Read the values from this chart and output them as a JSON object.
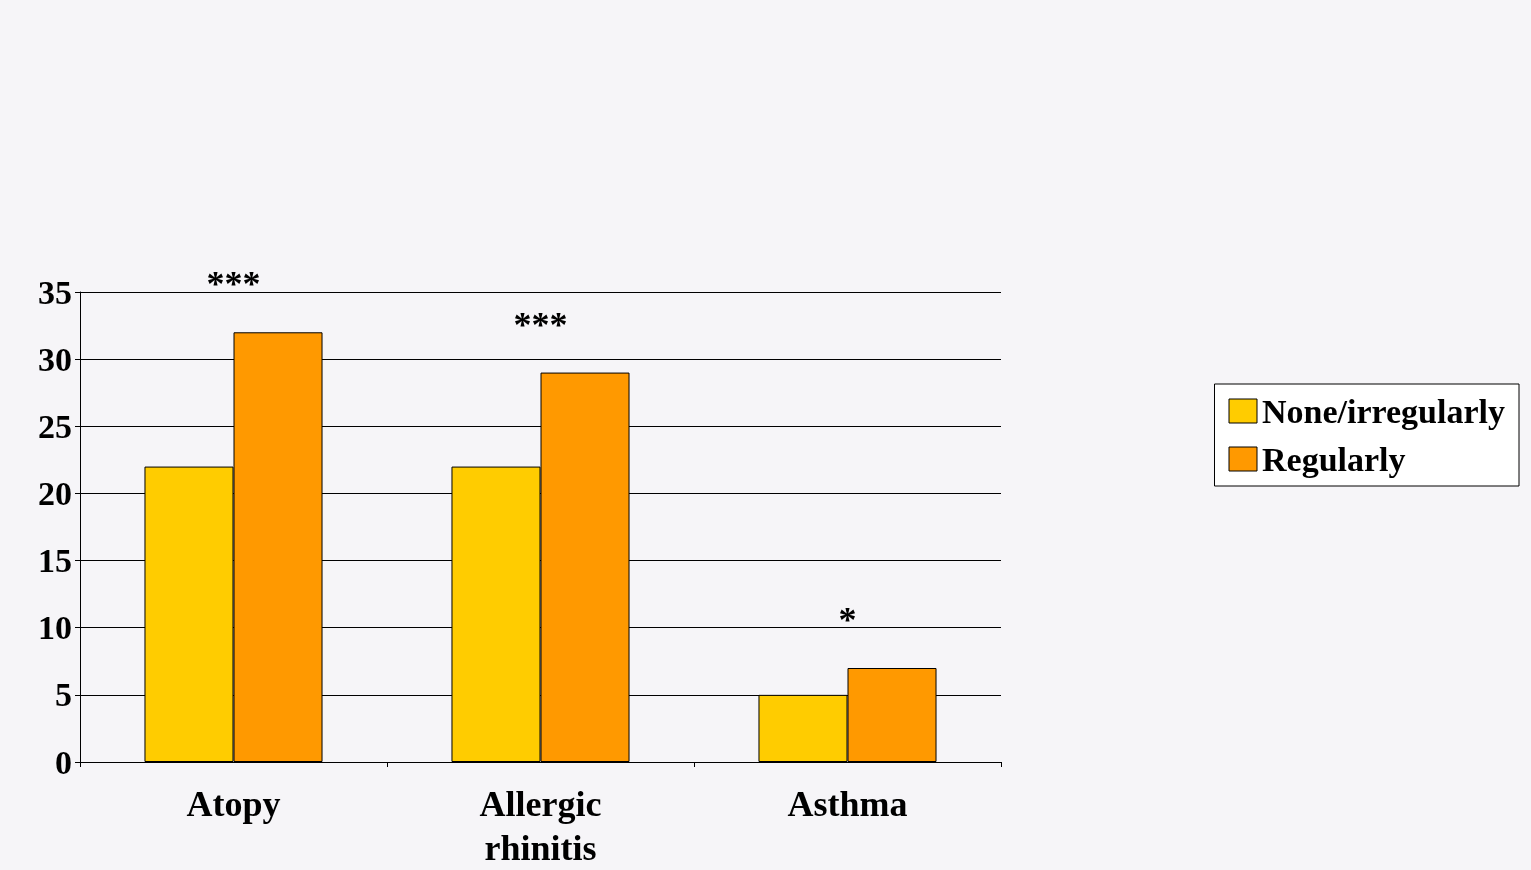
{
  "chart_data": {
    "type": "bar",
    "categories": [
      "Atopy",
      "Allergic rhinitis",
      "Asthma"
    ],
    "series": [
      {
        "name": "None/irregularly",
        "color": "#ffcc00",
        "values": [
          22,
          22,
          5
        ]
      },
      {
        "name": "Regularly",
        "color": "#ff9900",
        "values": [
          32,
          29,
          7
        ]
      }
    ],
    "ylim": [
      0,
      35
    ],
    "yticks": [
      0,
      5,
      10,
      15,
      20,
      25,
      30,
      35
    ],
    "grid": "y",
    "legend": "right",
    "annotations": [
      "***",
      "***",
      "*"
    ]
  }
}
